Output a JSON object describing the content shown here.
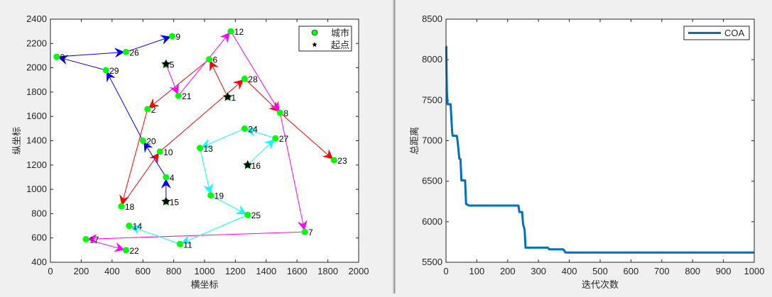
{
  "chart_data": [
    {
      "type": "scatter",
      "title": "",
      "xlabel": "横坐标",
      "ylabel": "纵坐标",
      "xlim": [
        0,
        2000
      ],
      "ylim": [
        400,
        2400
      ],
      "x_ticks": [
        "0",
        "200",
        "400",
        "600",
        "800",
        "1000",
        "1200",
        "1400",
        "1600",
        "1800",
        "2000"
      ],
      "y_ticks": [
        "400",
        "600",
        "800",
        "1000",
        "1200",
        "1400",
        "1600",
        "1800",
        "2000",
        "2200",
        "2400"
      ],
      "legend": {
        "placement": "top-right",
        "entries": [
          "城市",
          "起点"
        ]
      },
      "city_color": "#00ff00",
      "cities": [
        {
          "id": "1",
          "x": 1150,
          "y": 1760
        },
        {
          "id": "2",
          "x": 630,
          "y": 1660
        },
        {
          "id": "3",
          "x": 40,
          "y": 2090
        },
        {
          "id": "4",
          "x": 750,
          "y": 1100
        },
        {
          "id": "5",
          "x": 750,
          "y": 2030
        },
        {
          "id": "6",
          "x": 1030,
          "y": 2070
        },
        {
          "id": "7",
          "x": 1650,
          "y": 650
        },
        {
          "id": "8",
          "x": 1490,
          "y": 1630
        },
        {
          "id": "9",
          "x": 790,
          "y": 2260
        },
        {
          "id": "10",
          "x": 710,
          "y": 1310
        },
        {
          "id": "11",
          "x": 840,
          "y": 550
        },
        {
          "id": "12",
          "x": 1170,
          "y": 2300
        },
        {
          "id": "13",
          "x": 970,
          "y": 1340
        },
        {
          "id": "14",
          "x": 510,
          "y": 700
        },
        {
          "id": "15",
          "x": 750,
          "y": 900
        },
        {
          "id": "16",
          "x": 1280,
          "y": 1200
        },
        {
          "id": "17",
          "x": 230,
          "y": 590
        },
        {
          "id": "18",
          "x": 460,
          "y": 860
        },
        {
          "id": "19",
          "x": 1040,
          "y": 950
        },
        {
          "id": "20",
          "x": 600,
          "y": 1400
        },
        {
          "id": "21",
          "x": 830,
          "y": 1770
        },
        {
          "id": "22",
          "x": 490,
          "y": 500
        },
        {
          "id": "23",
          "x": 1840,
          "y": 1240
        },
        {
          "id": "24",
          "x": 1260,
          "y": 1500
        },
        {
          "id": "25",
          "x": 1280,
          "y": 790
        },
        {
          "id": "26",
          "x": 490,
          "y": 2130
        },
        {
          "id": "27",
          "x": 1460,
          "y": 1420
        },
        {
          "id": "28",
          "x": 1260,
          "y": 1910
        },
        {
          "id": "29",
          "x": 360,
          "y": 1980
        }
      ],
      "start_points": [
        "1",
        "5",
        "15",
        "16"
      ],
      "routes": [
        {
          "color": "#ff0000",
          "path": [
            "1",
            "6",
            "2",
            "18",
            "10",
            "28",
            "8",
            "23"
          ]
        },
        {
          "color": "#ff00ff",
          "path": [
            "5",
            "21",
            "12",
            "8",
            "7",
            "17",
            "22"
          ]
        },
        {
          "color": "#0000ff",
          "path": [
            "15",
            "4",
            "20",
            "29",
            "3",
            "26",
            "9"
          ]
        },
        {
          "color": "#00ffff",
          "path": [
            "16",
            "27",
            "24",
            "13",
            "19",
            "25",
            "11",
            "14"
          ]
        }
      ]
    },
    {
      "type": "line",
      "title": "",
      "xlabel": "迭代次数",
      "ylabel": "总距离",
      "xlim": [
        0,
        1000
      ],
      "ylim": [
        5500,
        8500
      ],
      "x_ticks": [
        "0",
        "100",
        "200",
        "300",
        "400",
        "500",
        "600",
        "700",
        "800",
        "900",
        "1000"
      ],
      "y_ticks": [
        "5500",
        "6000",
        "6500",
        "7000",
        "7500",
        "8000",
        "8500"
      ],
      "legend": {
        "placement": "top-right",
        "entries": [
          "COA"
        ]
      },
      "series": [
        {
          "name": "COA",
          "color": "#0072bd",
          "x": [
            1,
            2,
            3,
            5,
            15,
            17,
            20,
            22,
            35,
            38,
            40,
            43,
            47,
            50,
            62,
            65,
            75,
            235,
            238,
            247,
            250,
            255,
            258,
            330,
            335,
            380,
            388,
            1000
          ],
          "y": [
            8160,
            7800,
            7600,
            7450,
            7450,
            7300,
            7100,
            7060,
            7060,
            6980,
            6900,
            6780,
            6770,
            6510,
            6510,
            6220,
            6200,
            6200,
            6120,
            6120,
            5970,
            5900,
            5680,
            5680,
            5660,
            5660,
            5620,
            5620
          ]
        }
      ]
    }
  ]
}
